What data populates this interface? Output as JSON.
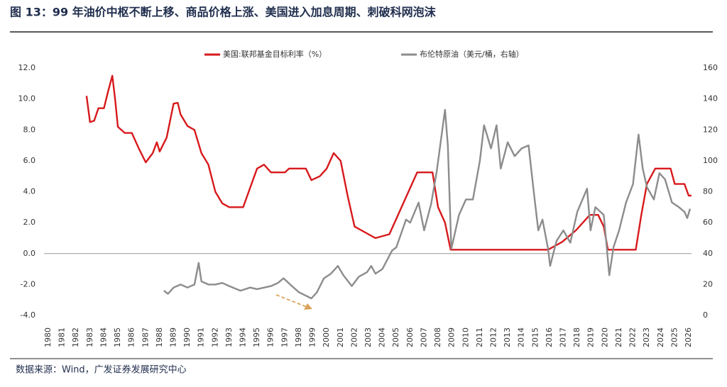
{
  "chart_data": {
    "type": "line",
    "title": "图 13：99 年油价中枢不断上移、商品价格上涨、美国进入加息周期、刺破科网泡沫",
    "source": "数据来源：Wind，广发证券发展研究中心",
    "xlim": [
      1980,
      2026
    ],
    "xticks": [
      1980,
      1981,
      1982,
      1983,
      1984,
      1985,
      1986,
      1987,
      1988,
      1989,
      1990,
      1991,
      1992,
      1993,
      1994,
      1995,
      1996,
      1997,
      1998,
      1999,
      2000,
      2001,
      2002,
      2003,
      2004,
      2005,
      2006,
      2007,
      2008,
      2009,
      2010,
      2011,
      2012,
      2013,
      2014,
      2015,
      2016,
      2017,
      2018,
      2019,
      2020,
      2021,
      2022,
      2023,
      2024,
      2025,
      2026
    ],
    "ylim": [
      -4,
      12
    ],
    "yticks": [
      {
        "value": 12,
        "label": "12.0"
      },
      {
        "value": 10,
        "label": "10.0"
      },
      {
        "value": 8,
        "label": "8.0"
      },
      {
        "value": 6,
        "label": "6.0"
      },
      {
        "value": 4,
        "label": "4.0"
      },
      {
        "value": 2,
        "label": "2.0"
      },
      {
        "value": 0,
        "label": "0.0"
      },
      {
        "value": -2,
        "label": "-2.0"
      },
      {
        "value": -4,
        "label": "-4.0"
      }
    ],
    "y2lim": [
      0,
      160
    ],
    "y2ticks": [
      160,
      140,
      120,
      100,
      80,
      60,
      40,
      20,
      0
    ],
    "series": [
      {
        "name": "美国:联邦基金目标利率（%）",
        "color": "#d7191c",
        "x": [
          1982.75,
          1983.0,
          1983.3,
          1983.6,
          1984.0,
          1984.3,
          1984.6,
          1984.8,
          1985.0,
          1985.5,
          1986.0,
          1986.5,
          1987.0,
          1987.5,
          1987.8,
          1988.0,
          1988.5,
          1989.0,
          1989.3,
          1989.5,
          1990.0,
          1990.5,
          1991.0,
          1991.5,
          1992.0,
          1992.5,
          1993.0,
          1994.0,
          1994.5,
          1995.0,
          1995.5,
          1996.0,
          1997.0,
          1997.3,
          1998.5,
          1998.9,
          1999.5,
          2000.0,
          2000.5,
          2001.0,
          2001.5,
          2002.0,
          2003.0,
          2003.5,
          2004.5,
          2005.0,
          2006.0,
          2006.5,
          2007.6,
          2008.0,
          2008.5,
          2008.9,
          2015.9,
          2016.9,
          2017.9,
          2018.9,
          2019.5,
          2019.9,
          2020.2,
          2022.2,
          2022.6,
          2023.0,
          2023.6,
          2024.7,
          2025.0,
          2025.7,
          2026.0,
          2026.2
        ],
        "values": [
          10.2,
          8.5,
          8.6,
          9.4,
          9.4,
          10.5,
          11.5,
          10.0,
          8.2,
          7.8,
          7.8,
          6.8,
          5.9,
          6.5,
          7.2,
          6.6,
          7.5,
          9.7,
          9.75,
          9.0,
          8.25,
          8.0,
          6.5,
          5.75,
          4.0,
          3.25,
          3.0,
          3.0,
          4.25,
          5.5,
          5.75,
          5.25,
          5.25,
          5.5,
          5.5,
          4.75,
          5.0,
          5.5,
          6.5,
          6.0,
          3.75,
          1.75,
          1.25,
          1.0,
          1.25,
          2.25,
          4.25,
          5.25,
          5.25,
          3.0,
          2.0,
          0.25,
          0.25,
          0.75,
          1.5,
          2.5,
          2.5,
          1.75,
          0.25,
          0.25,
          2.5,
          4.5,
          5.5,
          5.5,
          4.5,
          4.5,
          3.75,
          3.75
        ]
      },
      {
        "name": "布伦特原油（美元/桶，右轴）",
        "color": "#8c8c8c",
        "axis": "y2",
        "x": [
          1988.3,
          1988.6,
          1989.0,
          1989.5,
          1990.0,
          1990.5,
          1990.8,
          1991.0,
          1991.5,
          1992.0,
          1992.5,
          1993.0,
          1993.8,
          1994.5,
          1995.0,
          1996.0,
          1996.5,
          1996.9,
          1997.5,
          1998.0,
          1998.9,
          1999.3,
          1999.8,
          2000.3,
          2000.8,
          2001.2,
          2001.8,
          2002.3,
          2002.9,
          2003.2,
          2003.5,
          2004.0,
          2004.7,
          2005.0,
          2005.7,
          2006.0,
          2006.6,
          2007.0,
          2007.5,
          2007.9,
          2008.5,
          2008.7,
          2008.95,
          2009.5,
          2010.0,
          2010.5,
          2011.0,
          2011.3,
          2011.8,
          2012.2,
          2012.5,
          2013.0,
          2013.5,
          2014.0,
          2014.5,
          2014.9,
          2015.2,
          2015.5,
          2015.9,
          2016.05,
          2016.5,
          2017.0,
          2017.5,
          2018.0,
          2018.7,
          2018.95,
          2019.3,
          2019.9,
          2020.3,
          2020.6,
          2021.0,
          2021.5,
          2022.0,
          2022.4,
          2022.7,
          2023.0,
          2023.5,
          2023.9,
          2024.3,
          2024.8,
          2025.3,
          2025.7,
          2025.9,
          2026.1
        ],
        "values": [
          16,
          14,
          18,
          20,
          18,
          20,
          34,
          22,
          20,
          20,
          21,
          19,
          16,
          18,
          17,
          19,
          21,
          24,
          19,
          15,
          11,
          15,
          24,
          27,
          32,
          26,
          19,
          25,
          28,
          32,
          27,
          30,
          42,
          44,
          62,
          60,
          73,
          55,
          72,
          93,
          133,
          110,
          43,
          65,
          75,
          75,
          100,
          123,
          108,
          123,
          95,
          112,
          103,
          108,
          110,
          78,
          55,
          62,
          43,
          32,
          48,
          55,
          47,
          67,
          82,
          55,
          70,
          65,
          26,
          44,
          55,
          73,
          85,
          117,
          95,
          83,
          75,
          92,
          88,
          73,
          70,
          67,
          63,
          69
        ]
      }
    ]
  }
}
